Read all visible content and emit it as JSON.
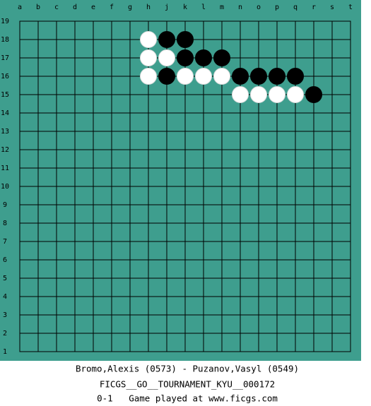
{
  "board": {
    "columns": [
      "a",
      "b",
      "c",
      "d",
      "e",
      "f",
      "g",
      "h",
      "j",
      "k",
      "l",
      "m",
      "n",
      "o",
      "p",
      "q",
      "r",
      "s",
      "t"
    ],
    "rows": [
      19,
      18,
      17,
      16,
      15,
      14,
      13,
      12,
      11,
      10,
      9,
      8,
      7,
      6,
      5,
      4,
      3,
      2,
      1
    ],
    "stones": [
      {
        "col": "h",
        "row": 18,
        "color": "white"
      },
      {
        "col": "j",
        "row": 18,
        "color": "black"
      },
      {
        "col": "k",
        "row": 18,
        "color": "black"
      },
      {
        "col": "h",
        "row": 17,
        "color": "white"
      },
      {
        "col": "j",
        "row": 17,
        "color": "white"
      },
      {
        "col": "k",
        "row": 17,
        "color": "black"
      },
      {
        "col": "l",
        "row": 17,
        "color": "black"
      },
      {
        "col": "m",
        "row": 17,
        "color": "black"
      },
      {
        "col": "h",
        "row": 16,
        "color": "white"
      },
      {
        "col": "j",
        "row": 16,
        "color": "black"
      },
      {
        "col": "k",
        "row": 16,
        "color": "white"
      },
      {
        "col": "l",
        "row": 16,
        "color": "white"
      },
      {
        "col": "m",
        "row": 16,
        "color": "white"
      },
      {
        "col": "n",
        "row": 16,
        "color": "black"
      },
      {
        "col": "o",
        "row": 16,
        "color": "black"
      },
      {
        "col": "p",
        "row": 16,
        "color": "black"
      },
      {
        "col": "q",
        "row": 16,
        "color": "black"
      },
      {
        "col": "n",
        "row": 15,
        "color": "white"
      },
      {
        "col": "o",
        "row": 15,
        "color": "white"
      },
      {
        "col": "p",
        "row": 15,
        "color": "white"
      },
      {
        "col": "q",
        "row": 15,
        "color": "white"
      },
      {
        "col": "r",
        "row": 15,
        "color": "black"
      }
    ]
  },
  "caption": {
    "players": "Bromo,Alexis (0573) - Puzanov,Vasyl (0549)",
    "event": "FICGS__GO__TOURNAMENT_KYU__000172",
    "result": "0-1   Game played at www.ficgs.com"
  }
}
